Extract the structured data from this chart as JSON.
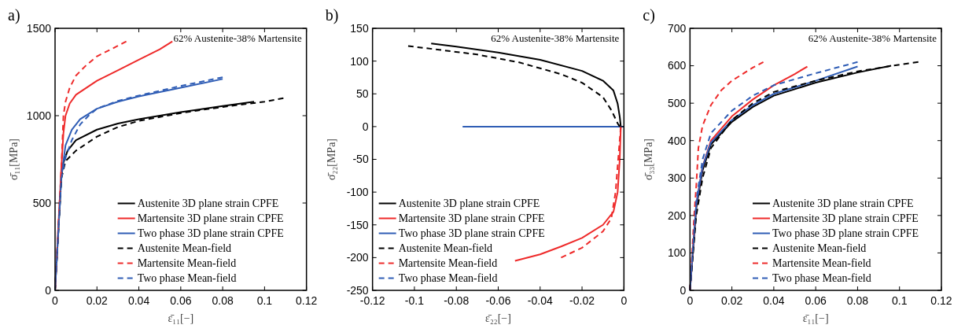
{
  "chart_data": [
    {
      "type": "line",
      "title": "a)",
      "xlabel": "ε̄₁₁[−]",
      "ylabel": "σ̄₁₁[MPa]",
      "xlim": [
        0,
        0.12
      ],
      "ylim": [
        0,
        1500
      ],
      "xticks": [
        0,
        0.02,
        0.04,
        0.06,
        0.08,
        0.1,
        0.12
      ],
      "yticks": [
        0,
        500,
        1000,
        1500
      ],
      "legend": "bottom right",
      "annotations": [
        "62% Austenite-38% Martensite"
      ],
      "series": [
        {
          "name": "Austenite 3D plane strain CPFE",
          "color": "#000000",
          "line_style": "solid",
          "x": [
            0,
            0.003,
            0.004,
            0.006,
            0.01,
            0.02,
            0.03,
            0.04,
            0.06,
            0.08,
            0.095
          ],
          "values": [
            0,
            650,
            730,
            800,
            860,
            920,
            955,
            980,
            1020,
            1055,
            1080
          ]
        },
        {
          "name": "Martensite 3D plane strain CPFE",
          "color": "#ee2a2a",
          "line_style": "solid",
          "x": [
            0,
            0.003,
            0.004,
            0.005,
            0.007,
            0.01,
            0.02,
            0.03,
            0.04,
            0.05,
            0.056
          ],
          "values": [
            0,
            700,
            900,
            1000,
            1070,
            1120,
            1200,
            1260,
            1320,
            1380,
            1425
          ]
        },
        {
          "name": "Two phase 3D plane strain CPFE",
          "color": "#2f5db5",
          "line_style": "solid",
          "x": [
            0,
            0.003,
            0.005,
            0.008,
            0.012,
            0.02,
            0.03,
            0.04,
            0.06,
            0.08
          ],
          "values": [
            0,
            650,
            830,
            920,
            980,
            1040,
            1080,
            1110,
            1160,
            1210
          ]
        },
        {
          "name": "Austenite Mean-field",
          "color": "#000000",
          "line_style": "dashed",
          "x": [
            0,
            0.003,
            0.005,
            0.01,
            0.02,
            0.03,
            0.04,
            0.06,
            0.08,
            0.1,
            0.109
          ],
          "values": [
            0,
            640,
            740,
            800,
            880,
            935,
            970,
            1015,
            1050,
            1080,
            1100
          ]
        },
        {
          "name": "Martensite Mean-field",
          "color": "#ee2a2a",
          "line_style": "dashed",
          "x": [
            0,
            0.003,
            0.004,
            0.005,
            0.007,
            0.01,
            0.015,
            0.02,
            0.03,
            0.034
          ],
          "values": [
            0,
            700,
            1000,
            1080,
            1160,
            1230,
            1290,
            1340,
            1400,
            1425
          ]
        },
        {
          "name": "Two phase Mean-field",
          "color": "#2f5db5",
          "line_style": "dashed",
          "x": [
            0,
            0.003,
            0.005,
            0.008,
            0.012,
            0.016,
            0.02,
            0.03,
            0.04,
            0.06,
            0.08
          ],
          "values": [
            0,
            640,
            760,
            860,
            950,
            1000,
            1040,
            1085,
            1115,
            1170,
            1220
          ]
        }
      ]
    },
    {
      "type": "line",
      "title": "b)",
      "xlabel": "ε̄₂₂[−]",
      "ylabel": "σ̄₂₂[MPa]",
      "xlim": [
        -0.12,
        0
      ],
      "ylim": [
        -250,
        150
      ],
      "xticks": [
        -0.12,
        -0.1,
        -0.08,
        -0.06,
        -0.04,
        -0.02,
        0
      ],
      "yticks": [
        -250,
        -200,
        -150,
        -100,
        -50,
        0,
        50,
        100,
        150
      ],
      "legend": "bottom left",
      "annotations": [
        "62% Austenite-38% Martensite"
      ],
      "series": [
        {
          "name": "Austenite 3D plane strain CPFE",
          "color": "#000000",
          "line_style": "solid",
          "x": [
            -0.092,
            -0.08,
            -0.06,
            -0.04,
            -0.02,
            -0.01,
            -0.005,
            -0.003,
            -0.002,
            -0.0015
          ],
          "values": [
            127,
            122,
            113,
            102,
            85,
            70,
            55,
            35,
            15,
            0
          ]
        },
        {
          "name": "Martensite 3D plane strain CPFE",
          "color": "#ee2a2a",
          "line_style": "solid",
          "x": [
            -0.0015,
            -0.002,
            -0.003,
            -0.005,
            -0.01,
            -0.02,
            -0.03,
            -0.04,
            -0.052
          ],
          "values": [
            0,
            -50,
            -100,
            -130,
            -150,
            -170,
            -183,
            -195,
            -205
          ]
        },
        {
          "name": "Two phase 3D plane strain CPFE",
          "color": "#2f5db5",
          "line_style": "solid",
          "x": [
            -0.077,
            0
          ],
          "values": [
            0,
            0
          ]
        },
        {
          "name": "Austenite Mean-field",
          "color": "#000000",
          "line_style": "dashed",
          "x": [
            -0.103,
            -0.09,
            -0.07,
            -0.05,
            -0.03,
            -0.02,
            -0.01,
            -0.006,
            -0.003,
            -0.002
          ],
          "values": [
            123,
            118,
            110,
            98,
            80,
            67,
            45,
            25,
            5,
            0
          ]
        },
        {
          "name": "Martensite Mean-field",
          "color": "#ee2a2a",
          "line_style": "dashed",
          "x": [
            -0.0015,
            -0.003,
            -0.004,
            -0.006,
            -0.01,
            -0.02,
            -0.03
          ],
          "values": [
            0,
            -60,
            -100,
            -140,
            -160,
            -185,
            -200
          ]
        },
        {
          "name": "Two phase Mean-field",
          "color": "#2f5db5",
          "line_style": "dashed"
        }
      ]
    },
    {
      "type": "line",
      "title": "c)",
      "xlabel": "ε̄₁₁[−]",
      "ylabel": "σ̄₃₃[MPa]",
      "xlim": [
        0,
        0.12
      ],
      "ylim": [
        0,
        700
      ],
      "xticks": [
        0,
        0.02,
        0.04,
        0.06,
        0.08,
        0.1,
        0.12
      ],
      "yticks": [
        0,
        100,
        200,
        300,
        400,
        500,
        600,
        700
      ],
      "legend": "bottom right",
      "annotations": [
        "62% Austenite-38% Martensite"
      ],
      "series": [
        {
          "name": "Austenite 3D plane strain CPFE",
          "color": "#000000",
          "line_style": "solid",
          "x": [
            0,
            0.003,
            0.006,
            0.01,
            0.02,
            0.03,
            0.04,
            0.06,
            0.08,
            0.096
          ],
          "values": [
            0,
            220,
            320,
            390,
            450,
            490,
            520,
            555,
            582,
            600
          ]
        },
        {
          "name": "Martensite 3D plane strain CPFE",
          "color": "#ee2a2a",
          "line_style": "solid",
          "x": [
            0,
            0.003,
            0.006,
            0.01,
            0.02,
            0.03,
            0.04,
            0.05,
            0.056
          ],
          "values": [
            0,
            230,
            330,
            400,
            465,
            510,
            548,
            578,
            598
          ]
        },
        {
          "name": "Two phase 3D plane strain CPFE",
          "color": "#2f5db5",
          "line_style": "solid",
          "x": [
            0,
            0.003,
            0.006,
            0.01,
            0.02,
            0.03,
            0.04,
            0.06,
            0.08
          ],
          "values": [
            0,
            230,
            330,
            395,
            455,
            495,
            525,
            560,
            598
          ]
        },
        {
          "name": "Austenite Mean-field",
          "color": "#000000",
          "line_style": "dashed",
          "x": [
            0,
            0.003,
            0.006,
            0.01,
            0.02,
            0.03,
            0.04,
            0.06,
            0.08,
            0.1,
            0.109
          ],
          "values": [
            0,
            200,
            300,
            380,
            455,
            500,
            530,
            560,
            585,
            603,
            610
          ]
        },
        {
          "name": "Martensite Mean-field",
          "color": "#ee2a2a",
          "line_style": "dashed",
          "x": [
            0,
            0.002,
            0.003,
            0.004,
            0.006,
            0.01,
            0.015,
            0.02,
            0.03,
            0.035
          ],
          "values": [
            0,
            200,
            280,
            380,
            440,
            495,
            535,
            560,
            595,
            610
          ]
        },
        {
          "name": "Two phase Mean-field",
          "color": "#2f5db5",
          "line_style": "dashed",
          "x": [
            0,
            0.003,
            0.006,
            0.01,
            0.02,
            0.03,
            0.04,
            0.06,
            0.08
          ],
          "values": [
            0,
            240,
            350,
            420,
            480,
            520,
            548,
            580,
            610
          ]
        }
      ]
    }
  ]
}
